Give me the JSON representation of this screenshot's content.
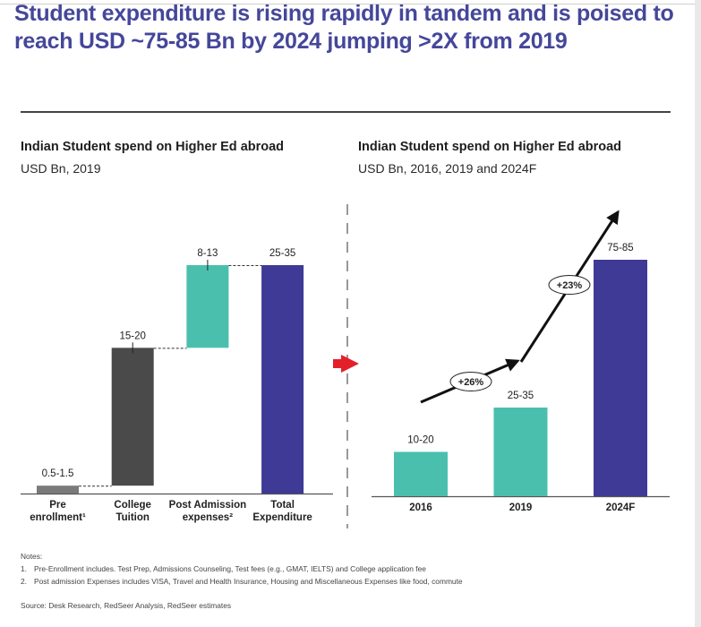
{
  "title": "Student expenditure is rising rapidly in tandem and is poised to reach USD ~75-85 Bn by 2024 jumping >2X from 2019",
  "left_panel": {
    "title": "Indian Student spend on Higher Ed abroad",
    "subtitle": "USD Bn, 2019"
  },
  "right_panel": {
    "title": "Indian Student spend on Higher Ed abroad",
    "subtitle": "USD Bn, 2016, 2019 and 2024F"
  },
  "chart_data": [
    {
      "type": "bar",
      "subtype": "waterfall",
      "title": "Indian Student spend on Higher Ed abroad",
      "subtitle": "USD Bn, 2019",
      "categories": [
        "Pre enrollment¹",
        "College Tuition",
        "Post Admission expenses²",
        "Total Expenditure"
      ],
      "category_lines": [
        [
          "Pre",
          "enrollment¹"
        ],
        [
          "College",
          "Tuition"
        ],
        [
          "Post Admission",
          "expenses²"
        ],
        [
          "Total",
          "Expenditure"
        ]
      ],
      "labels": [
        "0.5-1.5",
        "15-20",
        "8-13",
        "25-35"
      ],
      "values": [
        1,
        17.5,
        10.5,
        29
      ],
      "bases": [
        0,
        1,
        18.5,
        0
      ],
      "colors": [
        "#7a7a7a",
        "#4a4a4a",
        "#4bbfad",
        "#3e3a96"
      ],
      "ylim": [
        0,
        29
      ],
      "xlabel": "",
      "ylabel": "",
      "grid": false,
      "legend": "none"
    },
    {
      "type": "bar",
      "title": "Indian Student spend on Higher Ed abroad",
      "subtitle": "USD Bn, 2016, 2019 and 2024F",
      "categories": [
        "2016",
        "2019",
        "2024F"
      ],
      "labels": [
        "10-20",
        "25-35",
        "75-85"
      ],
      "values": [
        15,
        30,
        80
      ],
      "colors": [
        "#4bbfad",
        "#4bbfad",
        "#3e3a96"
      ],
      "ylim": [
        0,
        80
      ],
      "growth_annotations": [
        {
          "from": "2016",
          "to": "2019",
          "label": "+26%"
        },
        {
          "from": "2019",
          "to": "2024F",
          "label": "+23%"
        }
      ],
      "xlabel": "",
      "ylabel": "",
      "grid": false,
      "legend": "none"
    }
  ],
  "notes": {
    "heading": "Notes:",
    "items": [
      {
        "num": "1.",
        "text": "Pre-Enrollment includes. Test Prep, Admissions Counseling, Test fees (e.g., GMAT, IELTS) and College application fee"
      },
      {
        "num": "2.",
        "text": "Post admission Expenses includes VISA, Travel and Health Insurance, Housing and Miscellaneous Expenses like food, commute"
      }
    ],
    "source": "Source: Desk Research, RedSeer Analysis, RedSeer estimates"
  },
  "colors": {
    "title": "#45479a",
    "teal": "#4bbfad",
    "indigo": "#3e3a96",
    "dark_gray": "#4a4a4a",
    "gray": "#7a7a7a",
    "red_arrow": "#e3202a"
  }
}
